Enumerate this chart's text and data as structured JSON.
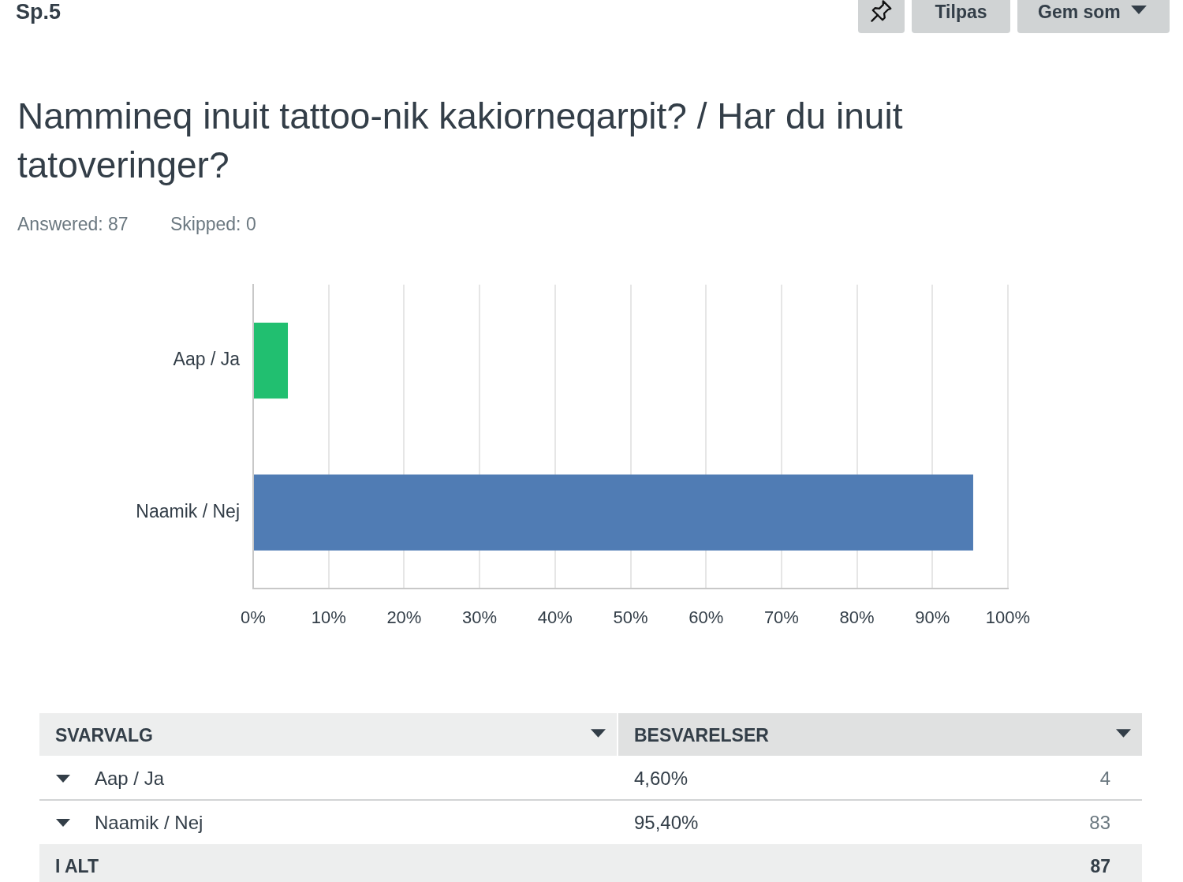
{
  "chart_data": {
    "type": "bar",
    "orientation": "horizontal",
    "title": "Nammineq inuit tattoo-nik kakiorneqarpit? / Har du inuit tatoveringer?",
    "categories": [
      "Aap / Ja",
      "Naamik / Nej"
    ],
    "values": [
      4.6,
      95.4
    ],
    "colors": [
      "#21bf70",
      "#507cb4"
    ],
    "xlim": [
      0,
      100
    ],
    "xticks": [
      {
        "value": 0,
        "label": "0%"
      },
      {
        "value": 10,
        "label": "10%"
      },
      {
        "value": 20,
        "label": "20%"
      },
      {
        "value": 30,
        "label": "30%"
      },
      {
        "value": 40,
        "label": "40%"
      },
      {
        "value": 50,
        "label": "50%"
      },
      {
        "value": 60,
        "label": "60%"
      },
      {
        "value": 70,
        "label": "70%"
      },
      {
        "value": 80,
        "label": "80%"
      },
      {
        "value": 90,
        "label": "90%"
      },
      {
        "value": 100,
        "label": "100%"
      }
    ],
    "grid": "x",
    "annotations": [
      "Sp.5",
      "Tilpas",
      "Gem som",
      "Answered: 87",
      "Skipped: 0",
      "SVARVALG",
      "BESVARELSER",
      "4,60%",
      "4",
      "95,40%",
      "83",
      "I ALT",
      "87"
    ]
  }
}
